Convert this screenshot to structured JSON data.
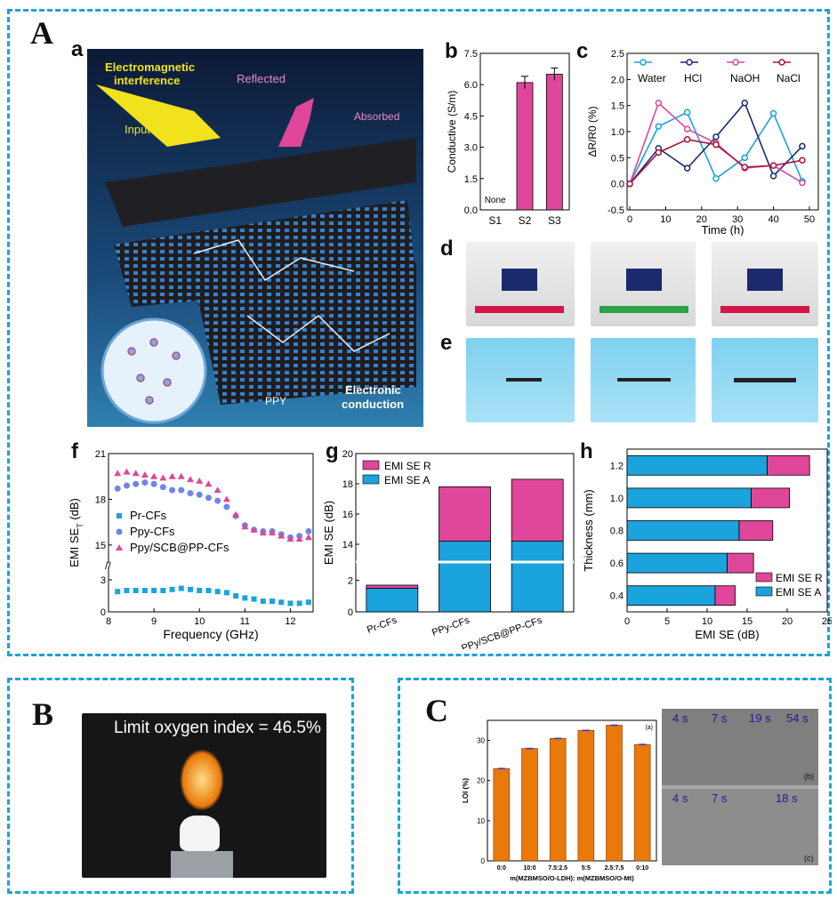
{
  "section_labels": {
    "A": "A",
    "B": "B",
    "C": "C"
  },
  "panel_labels": {
    "a": "a",
    "b": "b",
    "c": "c",
    "d": "d",
    "e": "e",
    "f": "f",
    "g": "g",
    "h": "h"
  },
  "illustration": {
    "emi": "Electromagnetic\ninterference",
    "input": "Input",
    "reflected": "Reflected",
    "absorbed": "Absorbed",
    "ppy": "PPY",
    "electronic": "Electronic\nconduction"
  },
  "photo_B": {
    "caption": "Limit oxygen index = 46.5%"
  },
  "photo_C": {
    "top_times": [
      "4 s",
      "7 s",
      "19 s",
      "54 s"
    ],
    "bottom_times": [
      "4 s",
      "7 s",
      "18 s"
    ],
    "tag_b": "(b)",
    "tag_c": "(c)"
  },
  "colors": {
    "blue": "#1aa3dc",
    "pink": "#e0469a",
    "navy": "#1a2a6c",
    "crimson": "#a8123e",
    "orange": "#e8790a"
  },
  "chart_data": [
    {
      "id": "b",
      "type": "bar",
      "categories": [
        "S1",
        "S2",
        "S3"
      ],
      "values": [
        0,
        6.1,
        6.5
      ],
      "errors": [
        0,
        0.3,
        0.3
      ],
      "bar_labels": [
        "None",
        "",
        ""
      ],
      "ylabel": "Conductive (S/m)",
      "ylim": [
        0,
        7.5
      ],
      "yticks": [
        "0.0",
        "1.5",
        "3.0",
        "4.5",
        "6.0",
        "7.5"
      ]
    },
    {
      "id": "c",
      "type": "line",
      "x": [
        0,
        8,
        16,
        24,
        32,
        40,
        48
      ],
      "xlabel": "Time (h)",
      "ylabel": "ΔR/R0 (%)",
      "ylim": [
        -0.5,
        2.5
      ],
      "xticks": [
        "0",
        "10",
        "20",
        "30",
        "40",
        "50"
      ],
      "yticks": [
        "-0.5",
        "0.0",
        "0.5",
        "1.0",
        "1.5",
        "2.0",
        "2.5"
      ],
      "series": [
        {
          "name": "Water",
          "color": "#1aa3dc",
          "values": [
            0,
            1.1,
            1.37,
            0.1,
            0.5,
            1.35,
            0.05
          ]
        },
        {
          "name": "HCl",
          "color": "#1a2a6c",
          "values": [
            0,
            0.68,
            0.3,
            0.9,
            1.55,
            0.15,
            0.72
          ]
        },
        {
          "name": "NaOH",
          "color": "#e0469a",
          "values": [
            0,
            1.55,
            1.05,
            0.78,
            0.3,
            0.35,
            0.02
          ]
        },
        {
          "name": "NaCl",
          "color": "#a8123e",
          "values": [
            0,
            0.6,
            0.85,
            0.75,
            0.32,
            0.35,
            0.45
          ]
        }
      ]
    },
    {
      "id": "f",
      "type": "scatter",
      "xlabel": "Frequency (GHz)",
      "ylabel": "EMI SE",
      "ylabel_sub": "T",
      "ylabel_unit": " (dB)",
      "xticks": [
        "8",
        "9",
        "10",
        "11",
        "12"
      ],
      "yticks_upper": [
        "15",
        "18",
        "21"
      ],
      "yticks_lower": [
        "0",
        "3"
      ],
      "series": [
        {
          "name": "Pr-CFs",
          "marker": "square",
          "color": "#1aa3dc",
          "x": [
            8.2,
            8.4,
            8.6,
            8.8,
            9.0,
            9.2,
            9.4,
            9.6,
            9.8,
            10.0,
            10.2,
            10.4,
            10.6,
            10.8,
            11.0,
            11.2,
            11.4,
            11.6,
            11.8,
            12.0,
            12.2,
            12.4
          ],
          "values": [
            1.9,
            2.0,
            2.0,
            2.0,
            2.0,
            2.0,
            2.1,
            2.2,
            2.1,
            2.0,
            2.0,
            1.9,
            1.8,
            1.5,
            1.3,
            1.2,
            1.0,
            1.0,
            0.9,
            0.8,
            0.8,
            0.9
          ]
        },
        {
          "name": "Ppy-CFs",
          "marker": "circle",
          "color": "#6f86e8",
          "x": [
            8.2,
            8.4,
            8.6,
            8.8,
            9.0,
            9.2,
            9.4,
            9.6,
            9.8,
            10.0,
            10.2,
            10.4,
            10.6,
            10.8,
            11.0,
            11.2,
            11.4,
            11.6,
            11.8,
            12.0,
            12.2,
            12.4
          ],
          "values": [
            18.7,
            18.9,
            19.0,
            19.1,
            19.0,
            18.8,
            18.6,
            18.6,
            18.4,
            18.3,
            18.1,
            17.9,
            17.5,
            16.9,
            16.3,
            16.0,
            15.9,
            15.9,
            15.7,
            15.5,
            15.6,
            15.9
          ]
        },
        {
          "name": "Ppy/SCB@PP-CFs",
          "marker": "triangle",
          "color": "#e0469a",
          "x": [
            8.2,
            8.4,
            8.6,
            8.8,
            9.0,
            9.2,
            9.4,
            9.6,
            9.8,
            10.0,
            10.2,
            10.4,
            10.6,
            10.8,
            11.0,
            11.2,
            11.4,
            11.6,
            11.8,
            12.0,
            12.2,
            12.4
          ],
          "values": [
            19.7,
            19.8,
            19.7,
            19.6,
            19.5,
            19.4,
            19.5,
            19.5,
            19.3,
            19.2,
            19.0,
            18.6,
            18.0,
            17.0,
            16.2,
            16.0,
            15.8,
            15.8,
            15.6,
            15.4,
            15.4,
            15.5
          ]
        }
      ]
    },
    {
      "id": "g",
      "type": "bar",
      "stacked": true,
      "categories": [
        "Pr-CFs",
        "PPy-CFs",
        "PPy/SCB@PP-CFs"
      ],
      "ylabel": "EMI SE (dB)",
      "yticks_upper": [
        "14",
        "16",
        "18",
        "20"
      ],
      "yticks_lower": [
        "0",
        "2"
      ],
      "series": [
        {
          "name": "EMI SE_A",
          "color": "#1aa3dc",
          "values": [
            1.5,
            14.2,
            14.2
          ]
        },
        {
          "name": "EMI SE_R",
          "color": "#e0469a",
          "values": [
            0.2,
            3.6,
            4.1
          ]
        }
      ]
    },
    {
      "id": "h",
      "type": "bar",
      "orientation": "horizontal",
      "stacked": true,
      "categories": [
        "0.4",
        "0.6",
        "0.8",
        "1.0",
        "1.2"
      ],
      "xlabel": "EMI SE (dB)",
      "ylabel": "Thickness (mm)",
      "xlim": [
        0,
        25
      ],
      "xticks": [
        "0",
        "5",
        "10",
        "15",
        "20",
        "25"
      ],
      "series": [
        {
          "name": "EMI SE_A",
          "color": "#1aa3dc",
          "values": [
            11.0,
            12.5,
            14.0,
            15.5,
            17.5
          ]
        },
        {
          "name": "EMI SE_R",
          "color": "#e0469a",
          "values": [
            2.5,
            3.3,
            4.2,
            4.8,
            5.3
          ]
        }
      ]
    },
    {
      "id": "C",
      "type": "bar",
      "tag": "(a)",
      "categories": [
        "0:0",
        "10:0",
        "7.5:2.5",
        "5:5",
        "2.5:7.5",
        "0:10"
      ],
      "values": [
        23.0,
        28.0,
        30.5,
        32.5,
        33.8,
        29.0
      ],
      "ylabel": "LOI (%)",
      "xlabel": "m(MZBMSO/O-LDH): m(MZBMSO/O-Mt)",
      "ylim": [
        0,
        35
      ],
      "yticks": [
        "0",
        "10",
        "20",
        "30"
      ]
    }
  ]
}
